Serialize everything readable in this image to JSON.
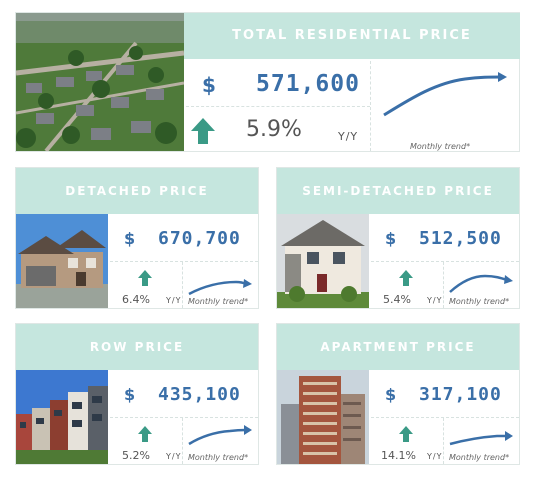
{
  "colors": {
    "header_bg": "#c5e6de",
    "value": "#3a6fa8",
    "up_arrow": "#3a9a86",
    "trend_line": "#3a6fa8"
  },
  "total": {
    "title": "TOTAL RESIDENTIAL PRICE",
    "currency": "$",
    "price": "571,600",
    "change": "5.9%",
    "period": "Y/Y",
    "trend_label": "Monthly trend*",
    "trend_icon": "up-arrow-icon"
  },
  "detached": {
    "title": "DETACHED PRICE",
    "currency": "$",
    "price": "670,700",
    "change": "6.4%",
    "period": "Y/Y",
    "trend_label": "Monthly trend*",
    "trend_icon": "up-arrow-icon"
  },
  "semi": {
    "title": "SEMI-DETACHED PRICE",
    "currency": "$",
    "price": "512,500",
    "change": "5.4%",
    "period": "Y/Y",
    "trend_label": "Monthly trend*",
    "trend_icon": "up-arrow-icon"
  },
  "row": {
    "title": "ROW PRICE",
    "currency": "$",
    "price": "435,100",
    "change": "5.2%",
    "period": "Y/Y",
    "trend_label": "Monthly trend*",
    "trend_icon": "up-arrow-icon"
  },
  "apartment": {
    "title": "APARTMENT PRICE",
    "currency": "$",
    "price": "317,100",
    "change": "14.1%",
    "period": "Y/Y",
    "trend_label": "Monthly trend*",
    "trend_icon": "up-arrow-icon"
  }
}
